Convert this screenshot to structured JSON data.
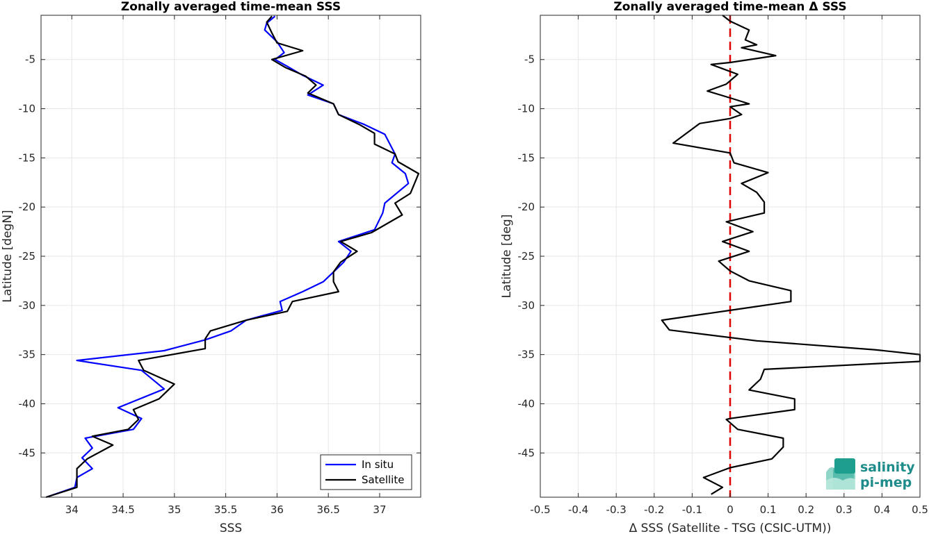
{
  "chart_data": [
    {
      "type": "line",
      "title": "Zonally averaged time-mean SSS",
      "xlabel": "SSS",
      "ylabel": "Latitude [degN]",
      "xlim": [
        33.7,
        37.4
      ],
      "ylim": [
        -49.5,
        -0.5
      ],
      "xticks": [
        34,
        34.5,
        35,
        35.5,
        36,
        36.5,
        37
      ],
      "xtick_labels": [
        "34",
        "34.5",
        "35",
        "35.5",
        "36",
        "36.5",
        "37"
      ],
      "yticks": [
        -5,
        -10,
        -15,
        -20,
        -25,
        -30,
        -35,
        -40,
        -45
      ],
      "ytick_labels": [
        "-5",
        "-10",
        "-15",
        "-20",
        "-25",
        "-30",
        "-35",
        "-40",
        "-45"
      ],
      "grid": true,
      "legend_position": "bottom-right",
      "series": [
        {
          "name": "In situ",
          "color": "#0000ff",
          "points": [
            [
              35.98,
              -0.6
            ],
            [
              35.9,
              -1.3
            ],
            [
              35.88,
              -2.0
            ],
            [
              36.0,
              -3.2
            ],
            [
              36.07,
              -4.3
            ],
            [
              35.98,
              -5.0
            ],
            [
              36.1,
              -5.7
            ],
            [
              36.25,
              -6.6
            ],
            [
              36.45,
              -7.6
            ],
            [
              36.3,
              -8.6
            ],
            [
              36.55,
              -9.5
            ],
            [
              36.6,
              -10.6
            ],
            [
              36.85,
              -11.6
            ],
            [
              37.05,
              -12.6
            ],
            [
              37.1,
              -13.6
            ],
            [
              37.15,
              -14.6
            ],
            [
              37.12,
              -15.5
            ],
            [
              37.25,
              -16.6
            ],
            [
              37.28,
              -17.6
            ],
            [
              37.05,
              -19.6
            ],
            [
              37.03,
              -20.6
            ],
            [
              36.95,
              -22.3
            ],
            [
              36.6,
              -23.5
            ],
            [
              36.72,
              -24.5
            ],
            [
              36.65,
              -25.6
            ],
            [
              36.55,
              -26.6
            ],
            [
              36.45,
              -27.6
            ],
            [
              36.25,
              -28.6
            ],
            [
              36.03,
              -29.6
            ],
            [
              36.05,
              -30.5
            ],
            [
              35.7,
              -31.5
            ],
            [
              35.55,
              -32.6
            ],
            [
              35.3,
              -33.5
            ],
            [
              34.9,
              -34.6
            ],
            [
              34.05,
              -35.6
            ],
            [
              34.68,
              -36.6
            ],
            [
              34.9,
              -38.5
            ],
            [
              34.45,
              -40.4
            ],
            [
              34.68,
              -41.5
            ],
            [
              34.6,
              -42.6
            ],
            [
              34.13,
              -43.5
            ],
            [
              34.2,
              -44.5
            ],
            [
              34.1,
              -45.5
            ],
            [
              34.2,
              -46.6
            ],
            [
              34.05,
              -47.5
            ],
            [
              34.03,
              -48.5
            ],
            [
              33.75,
              -49.5
            ]
          ]
        },
        {
          "name": "Satellite",
          "color": "#000000",
          "points": [
            [
              35.95,
              -0.6
            ],
            [
              35.9,
              -1.2
            ],
            [
              35.95,
              -2.3
            ],
            [
              36.0,
              -3.3
            ],
            [
              36.25,
              -4.1
            ],
            [
              35.95,
              -5.0
            ],
            [
              36.08,
              -5.8
            ],
            [
              36.28,
              -6.7
            ],
            [
              36.38,
              -7.6
            ],
            [
              36.3,
              -8.4
            ],
            [
              36.55,
              -9.5
            ],
            [
              36.6,
              -10.6
            ],
            [
              36.8,
              -11.6
            ],
            [
              36.95,
              -12.5
            ],
            [
              36.95,
              -13.6
            ],
            [
              37.15,
              -14.6
            ],
            [
              37.18,
              -15.4
            ],
            [
              37.38,
              -16.6
            ],
            [
              37.3,
              -18.6
            ],
            [
              37.15,
              -19.6
            ],
            [
              37.22,
              -20.8
            ],
            [
              36.92,
              -22.6
            ],
            [
              36.62,
              -23.5
            ],
            [
              36.78,
              -24.5
            ],
            [
              36.62,
              -25.6
            ],
            [
              36.55,
              -26.6
            ],
            [
              36.55,
              -27.6
            ],
            [
              36.6,
              -28.6
            ],
            [
              36.15,
              -29.6
            ],
            [
              36.1,
              -30.6
            ],
            [
              35.7,
              -31.5
            ],
            [
              35.35,
              -32.6
            ],
            [
              35.3,
              -33.4
            ],
            [
              35.3,
              -34.4
            ],
            [
              34.65,
              -35.6
            ],
            [
              34.7,
              -36.6
            ],
            [
              35.0,
              -38.0
            ],
            [
              34.85,
              -39.5
            ],
            [
              34.6,
              -40.6
            ],
            [
              34.65,
              -41.6
            ],
            [
              34.55,
              -42.6
            ],
            [
              34.2,
              -43.3
            ],
            [
              34.4,
              -44.2
            ],
            [
              34.15,
              -45.6
            ],
            [
              34.05,
              -46.6
            ],
            [
              34.05,
              -47.6
            ],
            [
              34.05,
              -48.5
            ],
            [
              33.75,
              -49.5
            ]
          ]
        }
      ]
    },
    {
      "type": "line",
      "title": "Zonally averaged time-mean Δ SSS",
      "xlabel": "Δ SSS (Satellite - TSG (CSIC-UTM))",
      "ylabel": "Latitude [deg]",
      "xlim": [
        -0.5,
        0.5
      ],
      "ylim": [
        -49.5,
        -0.5
      ],
      "xticks": [
        -0.5,
        -0.4,
        -0.3,
        -0.2,
        -0.1,
        0,
        0.1,
        0.2,
        0.3,
        0.4,
        0.5
      ],
      "xtick_labels": [
        "-0.5",
        "-0.4",
        "-0.3",
        "-0.2",
        "-0.1",
        "0",
        "0.1",
        "0.2",
        "0.3",
        "0.4",
        "0.5"
      ],
      "yticks": [
        -5,
        -10,
        -15,
        -20,
        -25,
        -30,
        -35,
        -40,
        -45
      ],
      "ytick_labels": [
        "-5",
        "-10",
        "-15",
        "-20",
        "-25",
        "-30",
        "-35",
        "-40",
        "-45"
      ],
      "grid": true,
      "reference_line": {
        "x": 0,
        "color": "#e00000",
        "style": "dashed"
      },
      "series": [
        {
          "name": "",
          "color": "#000000",
          "points": [
            [
              -0.02,
              -0.5
            ],
            [
              0.0,
              -1.1
            ],
            [
              0.05,
              -2.0
            ],
            [
              0.04,
              -3.0
            ],
            [
              0.07,
              -3.5
            ],
            [
              0.03,
              -3.8
            ],
            [
              0.12,
              -4.6
            ],
            [
              0.0,
              -5.3
            ],
            [
              -0.05,
              -5.5
            ],
            [
              0.02,
              -6.5
            ],
            [
              -0.01,
              -7.5
            ],
            [
              -0.06,
              -8.2
            ],
            [
              0.0,
              -8.9
            ],
            [
              0.05,
              -9.5
            ],
            [
              0.0,
              -9.8
            ],
            [
              0.03,
              -10.6
            ],
            [
              0.0,
              -11.0
            ],
            [
              -0.08,
              -11.5
            ],
            [
              -0.15,
              -13.5
            ],
            [
              0.0,
              -14.5
            ],
            [
              0.01,
              -15.5
            ],
            [
              0.1,
              -16.5
            ],
            [
              0.03,
              -17.6
            ],
            [
              0.07,
              -18.5
            ],
            [
              0.09,
              -19.5
            ],
            [
              0.09,
              -20.6
            ],
            [
              -0.01,
              -21.5
            ],
            [
              0.06,
              -22.5
            ],
            [
              -0.02,
              -23.5
            ],
            [
              0.05,
              -24.5
            ],
            [
              -0.03,
              -25.5
            ],
            [
              0.0,
              -26.5
            ],
            [
              0.05,
              -27.5
            ],
            [
              0.16,
              -28.5
            ],
            [
              0.16,
              -29.6
            ],
            [
              0.0,
              -30.5
            ],
            [
              -0.18,
              -31.5
            ],
            [
              -0.16,
              -32.5
            ],
            [
              0.07,
              -33.6
            ],
            [
              0.38,
              -34.5
            ],
            [
              0.5,
              -35.0
            ],
            [
              0.5,
              -35.7
            ],
            [
              0.09,
              -36.5
            ],
            [
              0.08,
              -37.5
            ],
            [
              0.05,
              -38.6
            ],
            [
              0.17,
              -39.5
            ],
            [
              0.17,
              -40.6
            ],
            [
              0.0,
              -41.5
            ],
            [
              -0.01,
              -41.6
            ],
            [
              0.02,
              -42.6
            ],
            [
              0.14,
              -43.5
            ],
            [
              0.14,
              -44.4
            ],
            [
              0.11,
              -45.6
            ],
            [
              0.0,
              -46.5
            ],
            [
              -0.07,
              -47.5
            ],
            [
              -0.02,
              -48.5
            ],
            [
              -0.05,
              -49.2
            ]
          ]
        }
      ]
    }
  ],
  "legend": {
    "items": [
      {
        "label": "In situ",
        "color": "#0000ff"
      },
      {
        "label": "Satellite",
        "color": "#000000"
      }
    ]
  },
  "logo": {
    "line1": "salinity",
    "line2": "pi-mep"
  }
}
